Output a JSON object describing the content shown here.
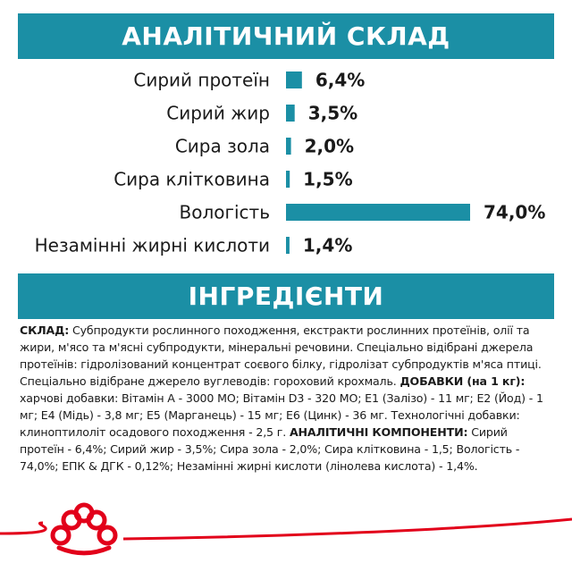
{
  "headers": {
    "analysis": "АНАЛІТИЧНИЙ СКЛАД",
    "ingredients": "ІНГРЕДІЄНТИ"
  },
  "chart_data": {
    "type": "bar",
    "orientation": "horizontal",
    "title": "АНАЛІТИЧНИЙ СКЛАД",
    "categories": [
      "Сирий протеїн",
      "Сирий жир",
      "Сира зола",
      "Сира клітковина",
      "Вологість",
      "Незамінні жирні кислоти"
    ],
    "values": [
      6.4,
      3.5,
      2.0,
      1.5,
      74.0,
      1.4
    ],
    "value_labels": [
      "6,4%",
      "3,5%",
      "2,0%",
      "1,5%",
      "74,0%",
      "1,4%"
    ],
    "unit": "%",
    "bar_color": "#1b8fa5",
    "xlim": [
      0,
      74
    ],
    "grid": false,
    "legend": "none"
  },
  "ingredients_text": {
    "composition_label": "СКЛАД:",
    "composition_text": " Субпродукти рослинного походження, екстракти рослинних протеїнів, олії та жири, м'ясо та м'ясні субпродукти, мінеральні речовини. Спеціально відібрані джерела протеїнів: гідролізований концентрат соєвого білку, гідролізат субпродуктів м'яса птиці. Спеціально відібране джерело вуглеводів: гороховий крохмаль. ",
    "additives_label": "ДОБАВКИ (на 1 кг):",
    "additives_text": " харчові добавки: Вітамін А - 3000 МО; Вітамін D3 - 320 МО; Е1 (Залізо) - 11 мг; Е2 (Йод) - 1 мг; Е4 (Мідь) - 3,8 мг; Е5 (Марганець) - 15 мг; Е6 (Цинк) - 36 мг. Технологічні добавки: клиноптилоліт осадового походження - 2,5 г. ",
    "analytic_label": "АНАЛІТИЧНІ КОМПОНЕНТИ:",
    "analytic_text": " Сирий протеїн - 6,4%; Сирий жир - 3,5%; Сира зола - 2,0%; Сира клітковина - 1,5; Вологість - 74,0%; ЕПК & ДГК - 0,12%; Незамінні жирні кислоти (лінолева кислота) - 1,4%."
  },
  "brand": {
    "logo": "royal-canin-crown-logo",
    "accent_color": "#e2001a"
  }
}
